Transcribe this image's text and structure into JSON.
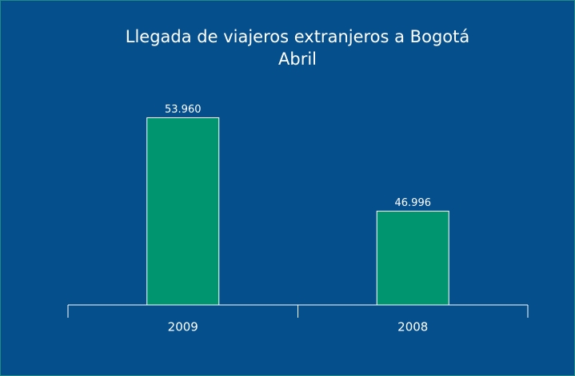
{
  "chart_data": {
    "type": "bar",
    "title": "Llegada de viajeros extranjeros a Bogotá",
    "subtitle": "Abril",
    "categories": [
      "2009",
      "2008"
    ],
    "values": [
      53960,
      46996
    ],
    "value_labels": [
      "53.960",
      "46.996"
    ],
    "color": "#00956f",
    "ylim": [
      40000,
      60000
    ]
  }
}
